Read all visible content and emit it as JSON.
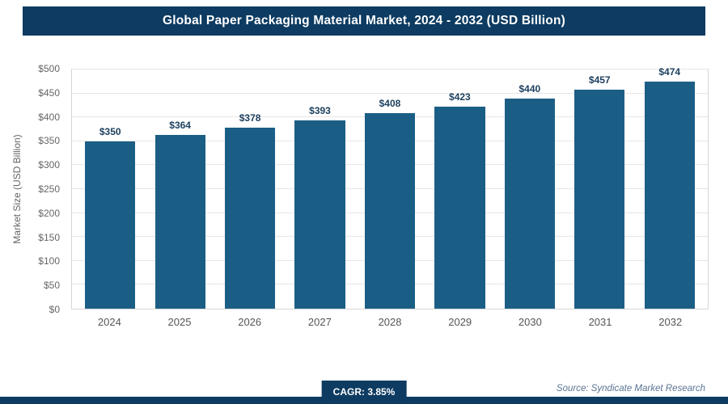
{
  "header": {
    "title": "Global Paper Packaging Material Market, 2024 - 2032 (USD Billion)"
  },
  "chart_data": {
    "type": "bar",
    "title": "Global Paper Packaging Material Market, 2024 - 2032 (USD Billion)",
    "categories": [
      "2024",
      "2025",
      "2026",
      "2027",
      "2028",
      "2029",
      "2030",
      "2031",
      "2032"
    ],
    "values": [
      350,
      364,
      378,
      393,
      408,
      423,
      440,
      457,
      474
    ],
    "value_labels": [
      "$350",
      "$364",
      "$378",
      "$393",
      "$408",
      "$423",
      "$440",
      "$457",
      "$474"
    ],
    "xlabel": "",
    "ylabel": "Market Size (USD Billion)",
    "ylim": [
      0,
      500
    ],
    "ytick_step": 50,
    "ytick_labels": [
      "$0",
      "$50",
      "$100",
      "$150",
      "$200",
      "$250",
      "$300",
      "$350",
      "$400",
      "$450",
      "$500"
    ],
    "grid": true,
    "legend": false,
    "bar_color": "#1b5e85"
  },
  "footer": {
    "cagr_label": "CAGR: 3.85%",
    "source": "Source: Syndicate Market Research"
  },
  "colors": {
    "header_bg": "#0d3b61",
    "bar": "#1b5e85",
    "value_label": "#1c3f5e"
  }
}
